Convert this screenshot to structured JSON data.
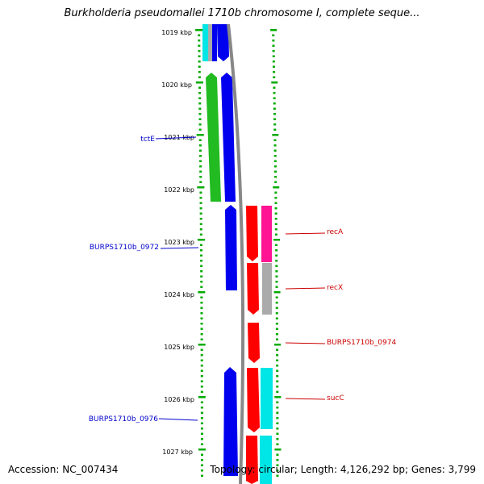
{
  "title": "Burkholderia pseudomallei 1710b chromosome I, complete seque...",
  "accession": "Accession: NC_007434",
  "stats": "Topology: circular; Length: 4,126,292 bp; Genes: 3,799",
  "colors": {
    "ruler": "#00aa00",
    "backbone": "#888888",
    "plus_strand_label": "#0000cc",
    "minus_strand_label": "#cc0000",
    "blue_gene": "#0000ee",
    "green_gene": "#22bb22",
    "red_gene": "#ff0000",
    "magenta_gene": "#ff1493",
    "grey_gene": "#aaaaaa",
    "cyan_gene": "#00e5e5"
  },
  "ruler_ticks": [
    "1019 kbp",
    "1020 kbp",
    "1021 kbp",
    "1022 kbp",
    "1023 kbp",
    "1024 kbp",
    "1025 kbp",
    "1026 kbp",
    "1027 kbp"
  ],
  "gene_labels": [
    {
      "name": "tctE",
      "strand": "plus"
    },
    {
      "name": "BURPS1710b_0972",
      "strand": "plus"
    },
    {
      "name": "BURPS1710b_0976",
      "strand": "plus"
    },
    {
      "name": "recA",
      "strand": "minus"
    },
    {
      "name": "recX",
      "strand": "minus"
    },
    {
      "name": "BURPS1710b_0974",
      "strand": "minus"
    },
    {
      "name": "sucC",
      "strand": "minus"
    }
  ]
}
